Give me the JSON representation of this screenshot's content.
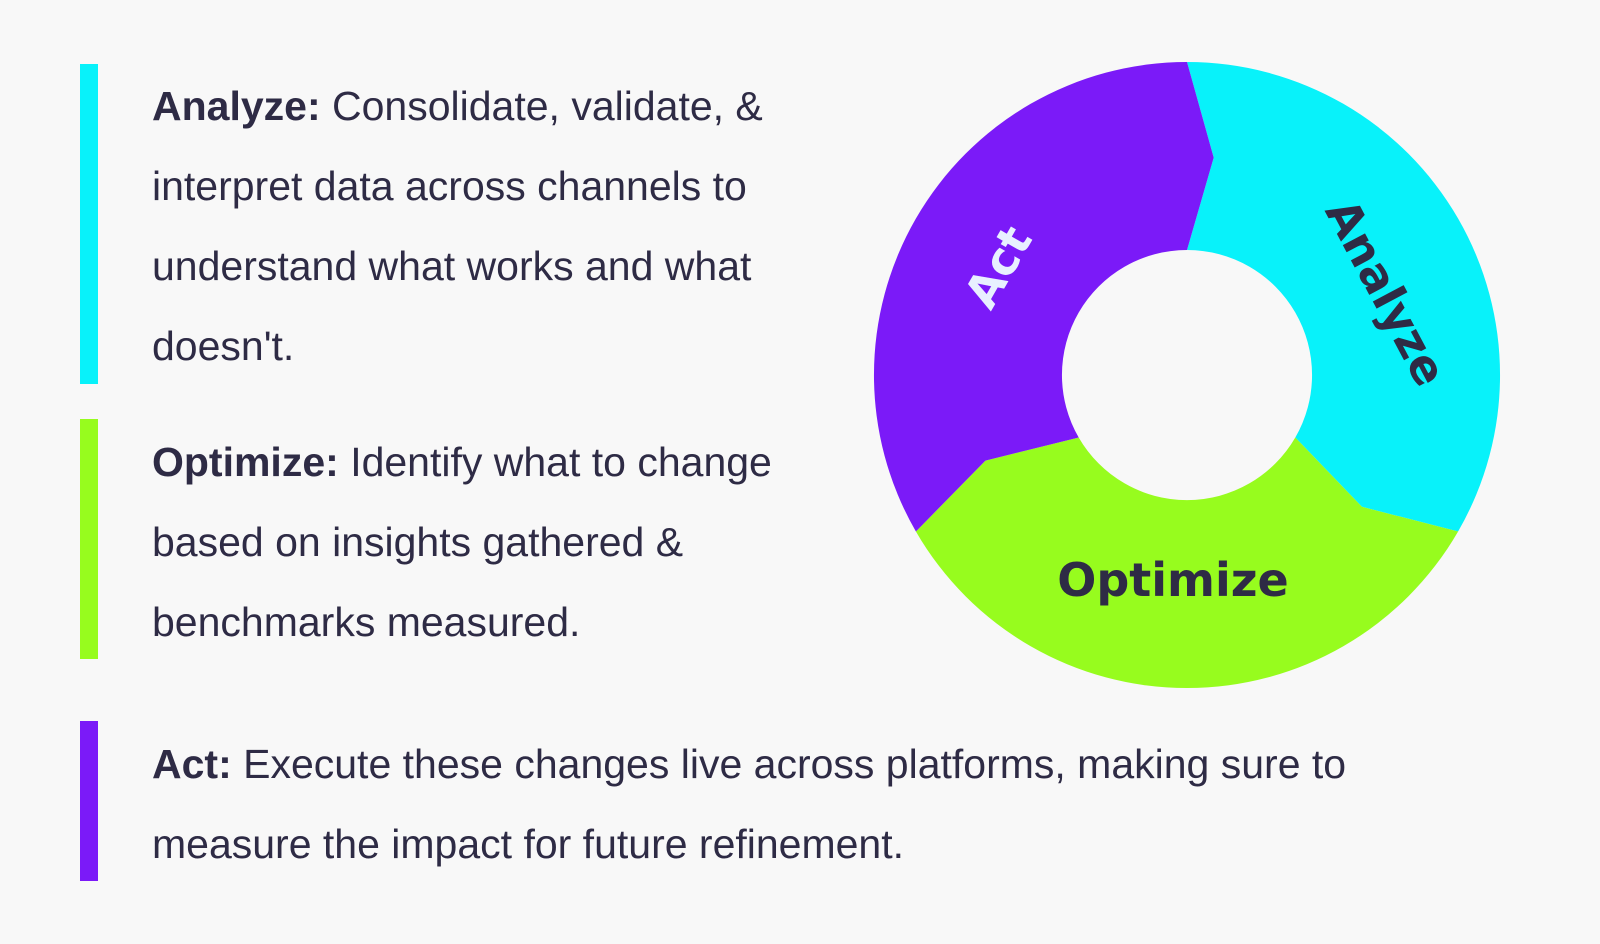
{
  "colors": {
    "analyze": "#08f2fa",
    "optimize": "#97fc1e",
    "act": "#7b1af8",
    "text": "#2e2b45",
    "act_label": "#e8f0ff",
    "background": "#f8f8f8"
  },
  "items": [
    {
      "title": "Analyze:",
      "body": " Consolidate, validate, & interpret data across channels to understand what works and what doesn't."
    },
    {
      "title": "Optimize:",
      "body": " Identify what to change based on insights gathered & benchmarks measured."
    },
    {
      "title": "Act:",
      "body": " Execute these changes live across platforms, making sure to measure the impact for future refinement."
    }
  ],
  "cycle": {
    "segments": [
      {
        "label": "Analyze",
        "color_key": "analyze"
      },
      {
        "label": "Optimize",
        "color_key": "optimize"
      },
      {
        "label": "Act",
        "color_key": "act"
      }
    ]
  }
}
